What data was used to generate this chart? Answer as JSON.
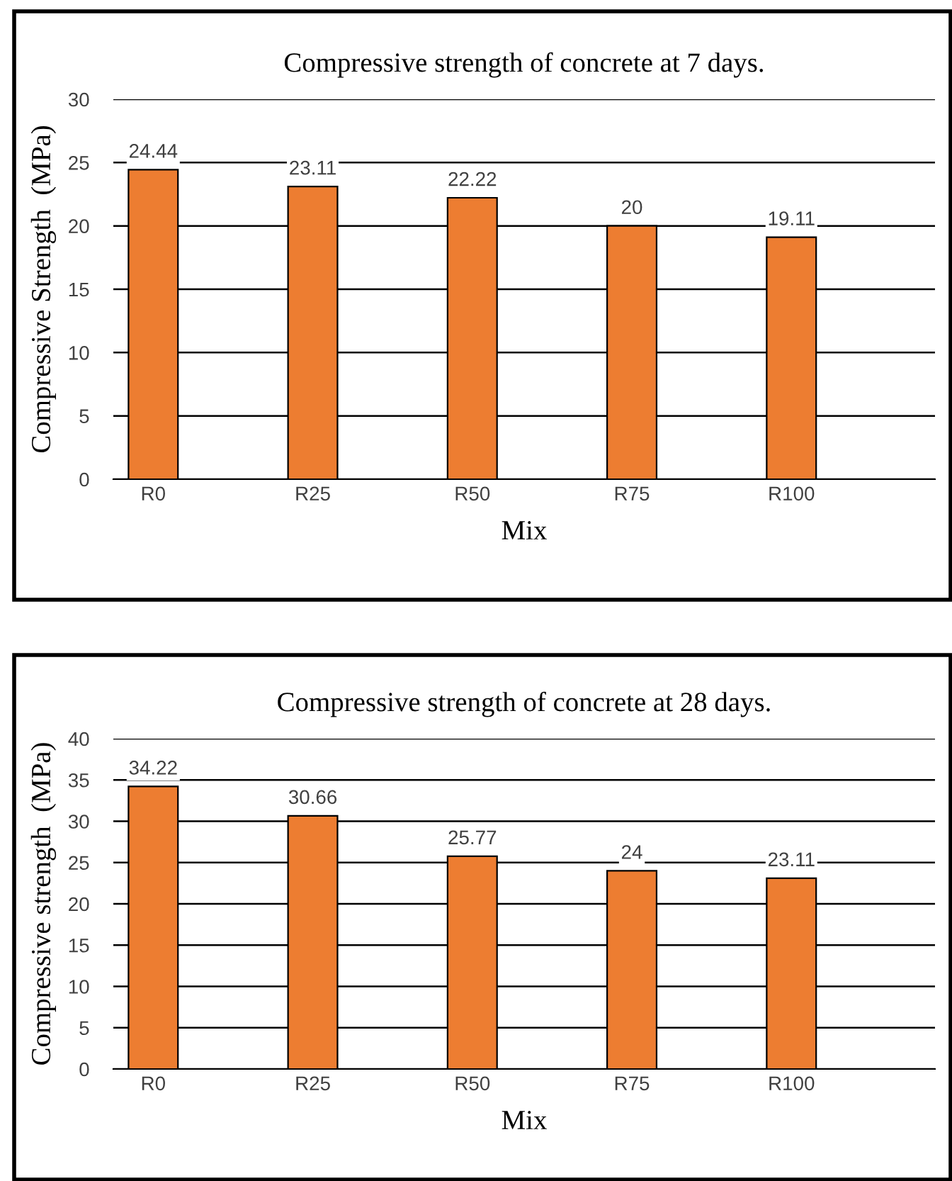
{
  "chart_data": [
    {
      "type": "bar",
      "title": "Compressive strength of concrete at 7 days.",
      "xlabel": "Mix",
      "ylabel": "Compressive Strength  (MPa)",
      "categories": [
        "R0",
        "R25",
        "R50",
        "R75",
        "R100"
      ],
      "values": [
        24.44,
        23.11,
        22.22,
        20,
        19.11
      ],
      "color": "#ed7d31",
      "ylim": [
        0,
        30
      ],
      "yticks": [
        0,
        5,
        10,
        15,
        20,
        25,
        30
      ],
      "grid": "y",
      "data_labels": true
    },
    {
      "type": "bar",
      "title": "Compressive strength of concrete at 28 days.",
      "xlabel": "Mix",
      "ylabel": "Compressive strength  (MPa)",
      "categories": [
        "R0",
        "R25",
        "R50",
        "R75",
        "R100"
      ],
      "values": [
        34.22,
        30.66,
        25.77,
        24,
        23.11
      ],
      "color": "#ed7d31",
      "ylim": [
        0,
        40
      ],
      "yticks": [
        0,
        5,
        10,
        15,
        20,
        25,
        30,
        35,
        40
      ],
      "grid": "y",
      "data_labels": true
    }
  ]
}
